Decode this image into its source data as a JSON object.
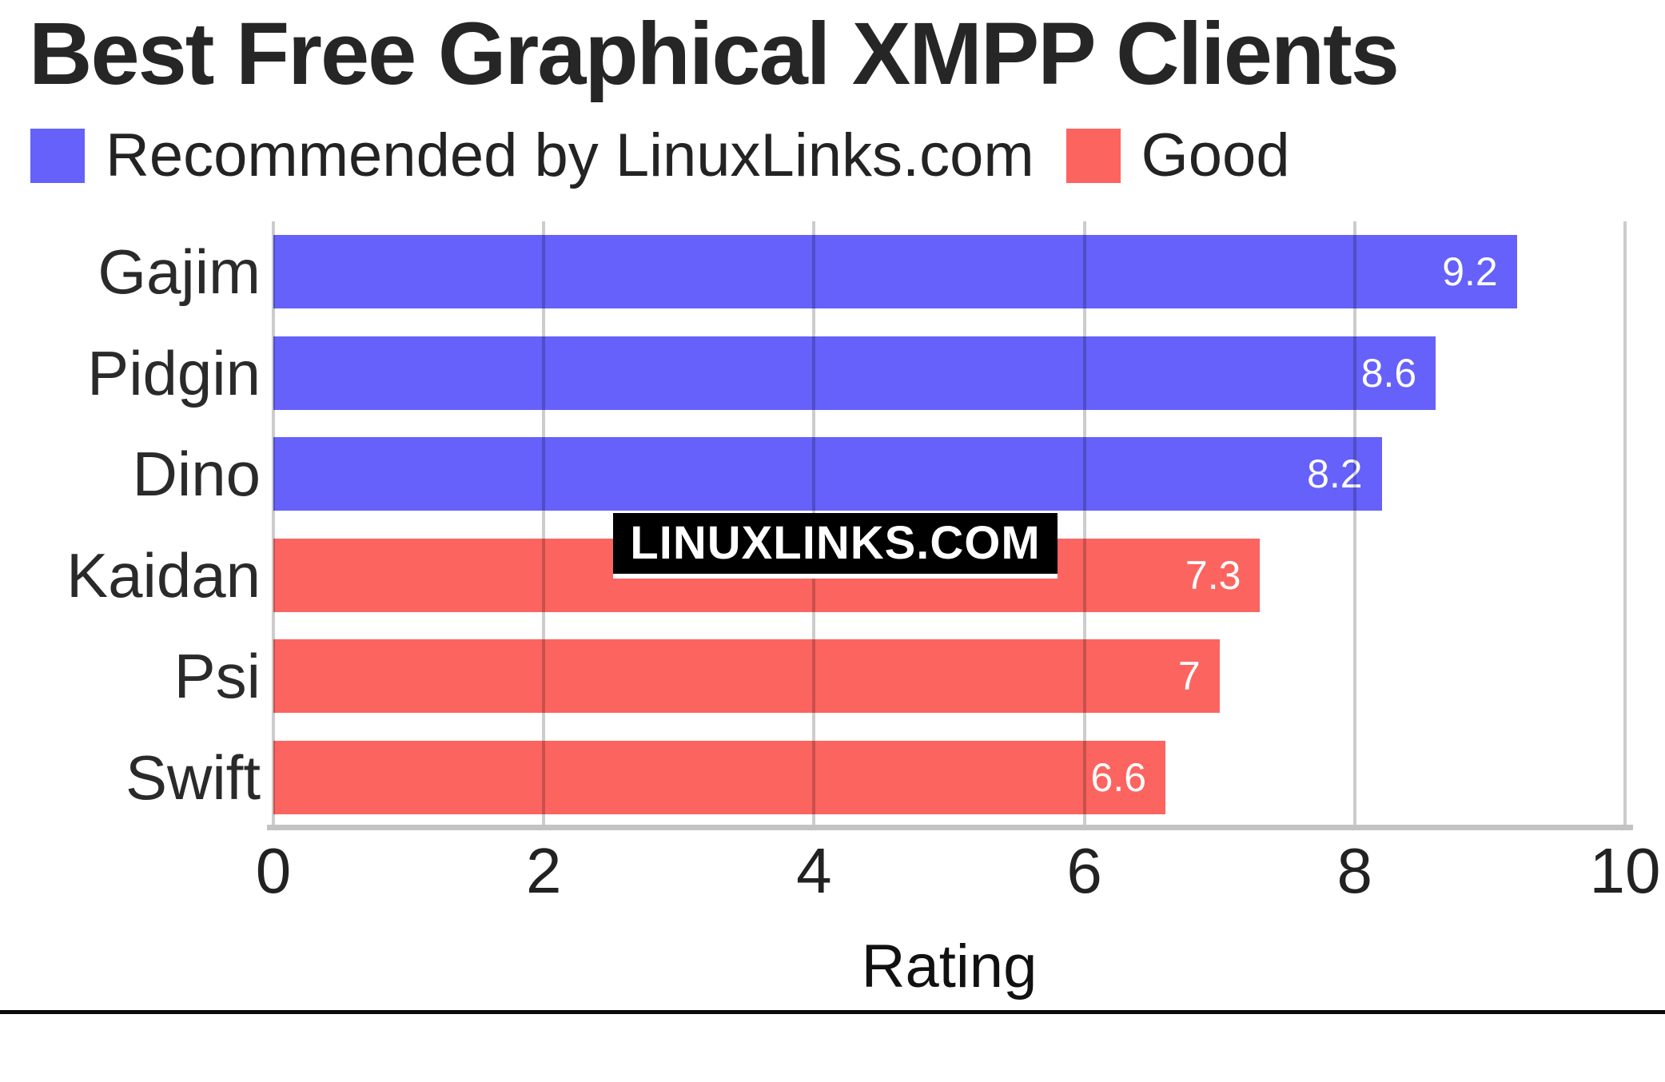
{
  "title": "Best Free Graphical XMPP Clients",
  "watermark": "LINUXLINKS.COM",
  "colors": {
    "recommended": "#6561fa",
    "good": "#fc6460",
    "grid": "#cccccc",
    "axis_line": "#c3c3c3",
    "value_text": "#ffffff",
    "title_text": "#262626"
  },
  "legend": [
    {
      "key": "recommended",
      "label": "Recommended by LinuxLinks.com",
      "color": "#6561fa"
    },
    {
      "key": "good",
      "label": "Good",
      "color": "#fc6460"
    }
  ],
  "chart_data": {
    "type": "bar",
    "orientation": "horizontal",
    "title": "Best Free Graphical XMPP Clients",
    "categories": [
      "Gajim",
      "Pidgin",
      "Dino",
      "Kaidan",
      "Psi",
      "Swift"
    ],
    "series": [
      {
        "name": "Rating",
        "values": [
          9.2,
          8.6,
          8.2,
          7.3,
          7,
          6.6
        ],
        "value_labels": [
          "9.2",
          "8.6",
          "8.2",
          "7.3",
          "7",
          "6.6"
        ],
        "groups": [
          "recommended",
          "recommended",
          "recommended",
          "good",
          "good",
          "good"
        ]
      }
    ],
    "xlabel": "Rating",
    "ylabel": "",
    "xlim": [
      0,
      10
    ],
    "xticks": [
      "0",
      "2",
      "4",
      "6",
      "8",
      "10"
    ],
    "grid": "vertical",
    "legend_position": "top-left",
    "value_labels_inside_bar": true
  }
}
